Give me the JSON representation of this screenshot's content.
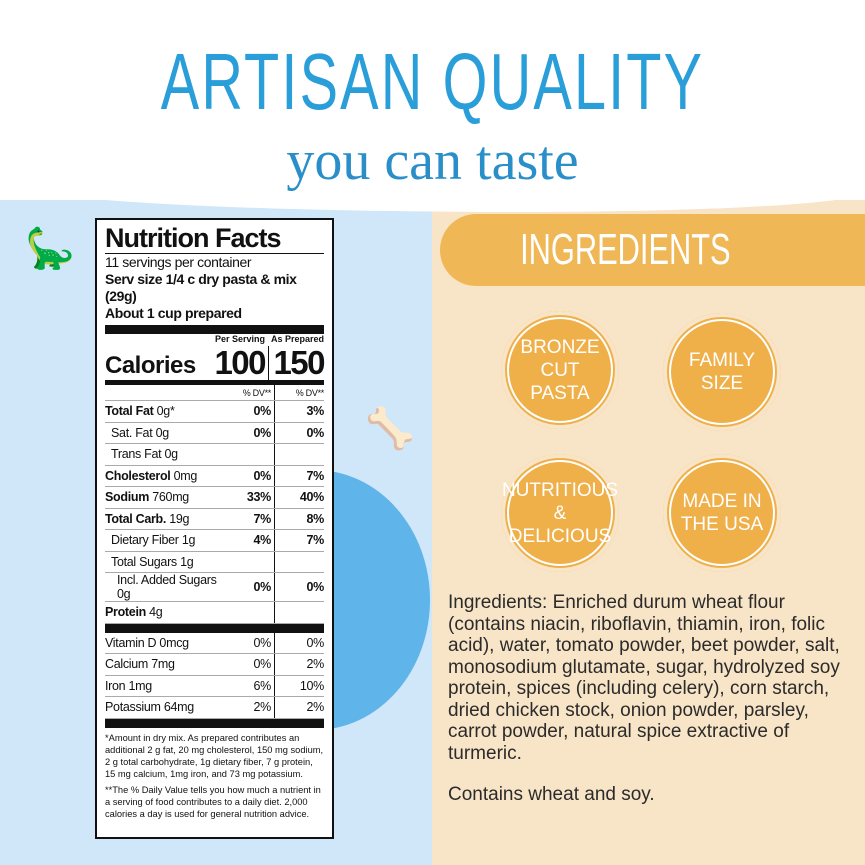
{
  "header": {
    "title": "ARTISAN QUALITY",
    "subtitle": "you can taste"
  },
  "ingredients_banner": "INGREDIENTS",
  "badges": [
    "BRONZE CUT PASTA",
    "FAMILY SIZE",
    "NUTRITIOUS & DELICIOUS",
    "MADE IN THE USA"
  ],
  "ingredients_text": "Ingredients: Enriched durum wheat flour (contains niacin, riboflavin, thiamin, iron, folic acid), water, tomato powder, beet powder, salt, monosodium glutamate, sugar, hydrolyzed soy protein, spices (including celery), corn starch, dried chicken stock, onion powder, parsley, carrot powder, natural spice extractive of turmeric.",
  "contains": "Contains wheat and soy.",
  "nutrition": {
    "title": "Nutrition Facts",
    "servings": "11 servings per container",
    "serving_size": "Serv size 1/4 c dry pasta & mix (29g)",
    "prepared": "About 1 cup prepared",
    "calories_label": "Calories",
    "per_serving_label": "Per Serving",
    "as_prepared_label": "As Prepared",
    "calories_serving": "100",
    "calories_prepared": "150",
    "dv_label": "% DV**",
    "rows": [
      {
        "name": "Total Fat",
        "amt": "0g*",
        "a": "0%",
        "b": "3%",
        "bold": true,
        "indent": 0
      },
      {
        "name": "Sat. Fat",
        "amt": "0g",
        "a": "0%",
        "b": "0%",
        "bold": false,
        "indent": 1
      },
      {
        "name": "Trans Fat",
        "amt": "0g",
        "a": "",
        "b": "",
        "bold": false,
        "indent": 1
      },
      {
        "name": "Cholesterol",
        "amt": "0mg",
        "a": "0%",
        "b": "7%",
        "bold": true,
        "indent": 0
      },
      {
        "name": "Sodium",
        "amt": "760mg",
        "a": "33%",
        "b": "40%",
        "bold": true,
        "indent": 0
      },
      {
        "name": "Total Carb.",
        "amt": "19g",
        "a": "7%",
        "b": "8%",
        "bold": true,
        "indent": 0
      },
      {
        "name": "Dietary Fiber",
        "amt": "1g",
        "a": "4%",
        "b": "7%",
        "bold": false,
        "indent": 1
      },
      {
        "name": "Total Sugars",
        "amt": "1g",
        "a": "",
        "b": "",
        "bold": false,
        "indent": 1
      },
      {
        "name": "Incl. Added Sugars",
        "amt": "0g",
        "a": "0%",
        "b": "0%",
        "bold": false,
        "indent": 2
      },
      {
        "name": "Protein",
        "amt": "4g",
        "a": "",
        "b": "",
        "bold": true,
        "indent": 0
      }
    ],
    "vitamins": [
      {
        "name": "Vitamin D 0mcg",
        "a": "0%",
        "b": "0%"
      },
      {
        "name": "Calcium 7mg",
        "a": "0%",
        "b": "2%"
      },
      {
        "name": "Iron 1mg",
        "a": "6%",
        "b": "10%"
      },
      {
        "name": "Potassium 64mg",
        "a": "2%",
        "b": "2%"
      }
    ],
    "footnote1": "*Amount in dry mix.  As prepared contributes an additional 2 g fat, 20 mg cholesterol, 150 mg sodium, 2 g total carbohydrate, 1g dietary fiber, 7 g protein, 15 mg calcium, 1mg iron, and 73 mg potassium.",
    "footnote2": "**The % Daily Value tells you how much a nutrient in a serving of food contributes to a daily diet. 2,000 calories a day is used for general nutrition advice."
  },
  "colors": {
    "title_blue": "#2a9ed8",
    "left_bg": "#cfe7f8",
    "right_bg": "#f8e4c6",
    "orange": "#efb04a"
  }
}
